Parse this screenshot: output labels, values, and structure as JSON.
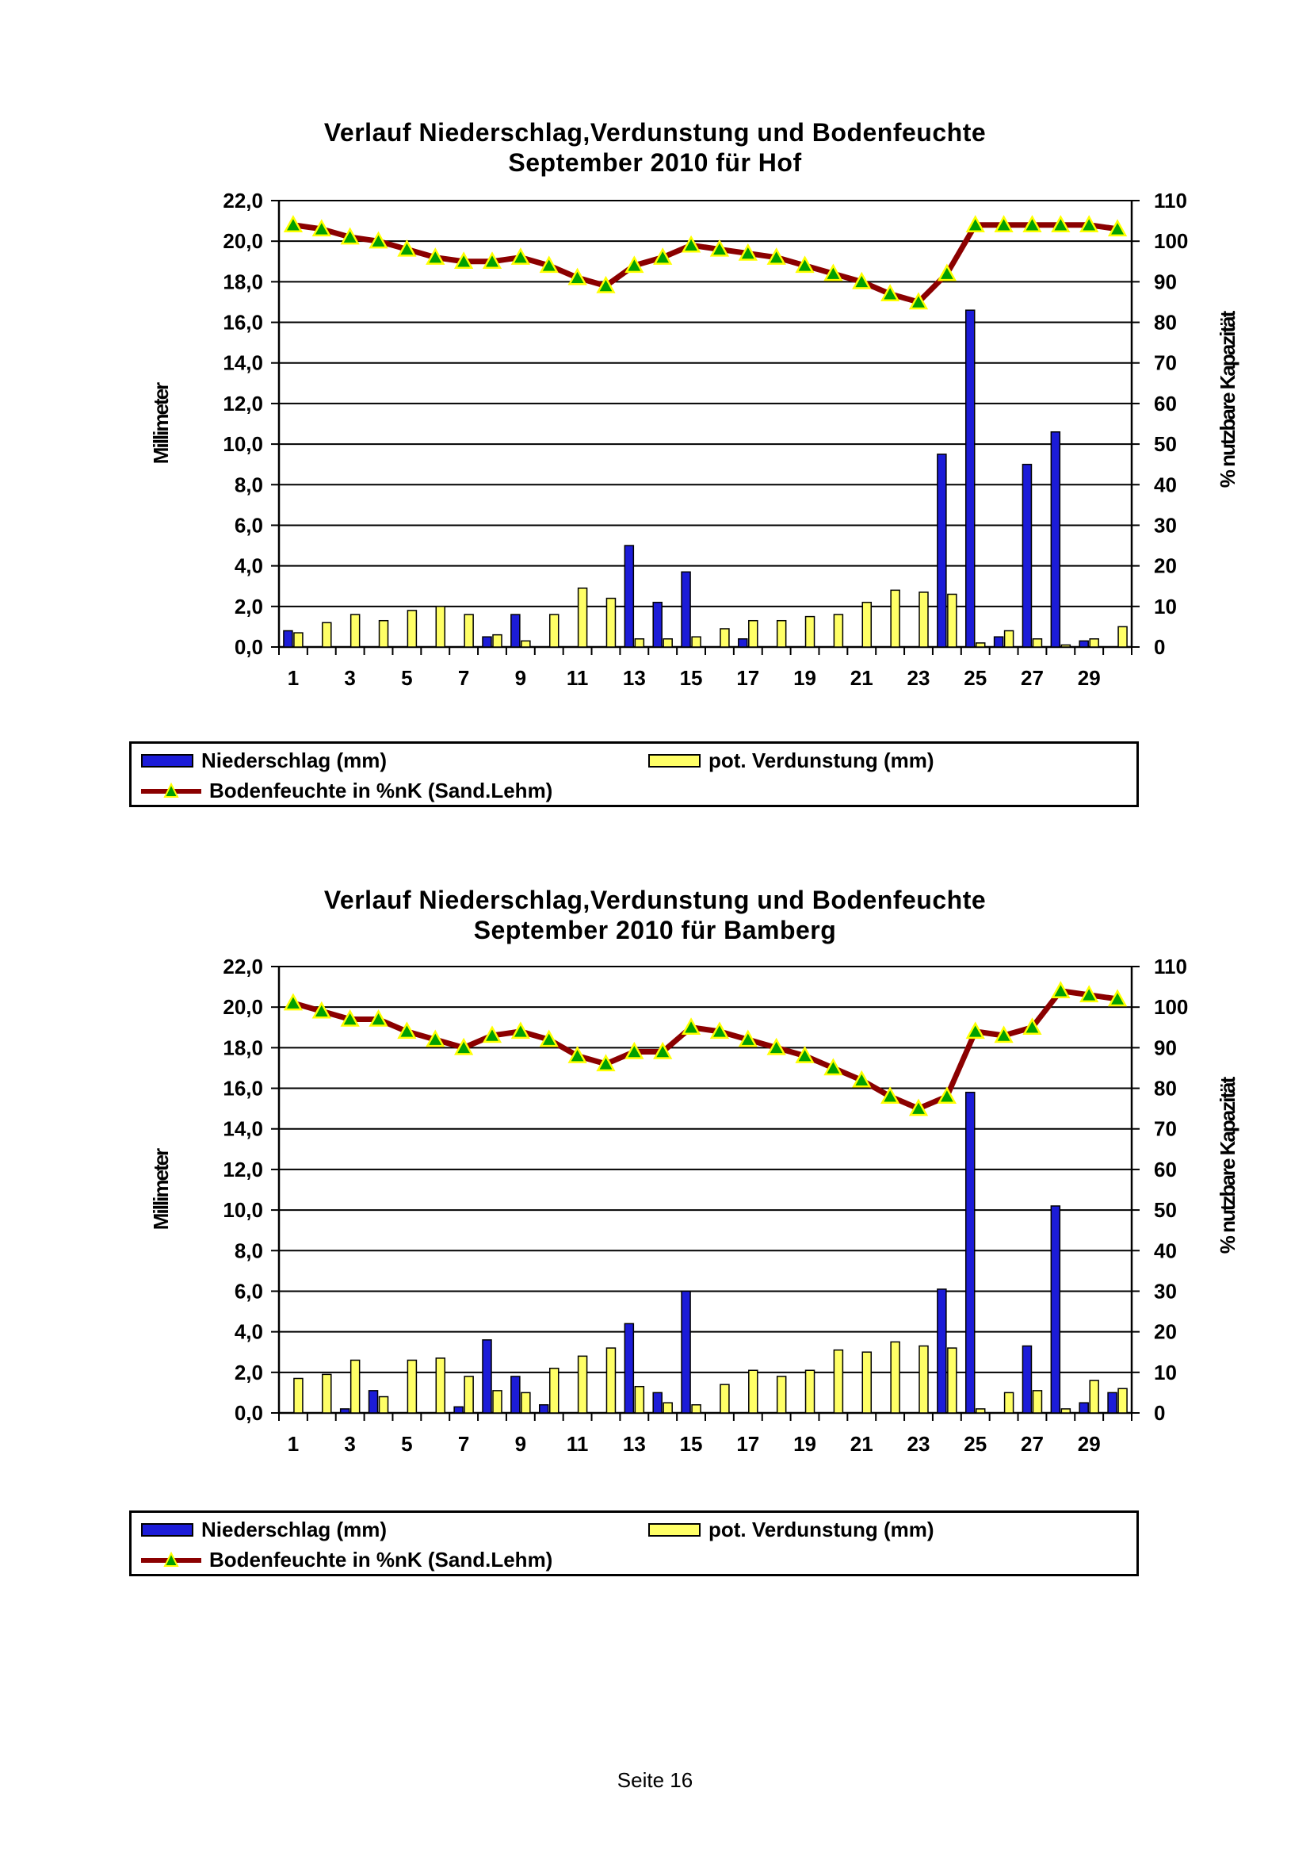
{
  "page": {
    "footer": "Seite 16"
  },
  "chart_data": [
    {
      "type": "bar",
      "title_line1": "Verlauf Niederschlag,Verdunstung und Bodenfeuchte",
      "title_line2": "September 2010 für Hof",
      "ylabel": "Millimeter",
      "y2label": "% nutzbare Kapazität",
      "ylim": [
        0,
        22
      ],
      "y2lim": [
        0,
        110
      ],
      "y_ticks": [
        "0,0",
        "2,0",
        "4,0",
        "6,0",
        "8,0",
        "10,0",
        "12,0",
        "14,0",
        "16,0",
        "18,0",
        "20,0",
        "22,0"
      ],
      "y2_ticks": [
        "0",
        "10",
        "20",
        "30",
        "40",
        "50",
        "60",
        "70",
        "80",
        "90",
        "100",
        "110"
      ],
      "x_tick_labels": [
        "1",
        "3",
        "5",
        "7",
        "9",
        "11",
        "13",
        "15",
        "17",
        "19",
        "21",
        "23",
        "25",
        "27",
        "29"
      ],
      "categories": [
        1,
        2,
        3,
        4,
        5,
        6,
        7,
        8,
        9,
        10,
        11,
        12,
        13,
        14,
        15,
        16,
        17,
        18,
        19,
        20,
        21,
        22,
        23,
        24,
        25,
        26,
        27,
        28,
        29,
        30
      ],
      "grid": "horizontal",
      "legend_position": "bottom",
      "series": [
        {
          "name": "Niederschlag (mm)",
          "kind": "bar",
          "axis": "left",
          "color": "#1c1cd8",
          "values": [
            0.8,
            0,
            0,
            0,
            0,
            0,
            0,
            0.5,
            1.6,
            0,
            0,
            0,
            5.0,
            2.2,
            3.7,
            0,
            0.4,
            0,
            0,
            0,
            0,
            0,
            0,
            9.5,
            16.6,
            0.5,
            9.0,
            10.6,
            0.3,
            0
          ]
        },
        {
          "name": "pot. Verdunstung (mm)",
          "kind": "bar",
          "axis": "left",
          "color": "#ffff66",
          "values": [
            0.7,
            1.2,
            1.6,
            1.3,
            1.8,
            2.0,
            1.6,
            0.6,
            0.3,
            1.6,
            2.9,
            2.4,
            0.4,
            0.4,
            0.5,
            0.9,
            1.3,
            1.3,
            1.5,
            1.6,
            2.2,
            2.8,
            2.7,
            2.6,
            0.2,
            0.8,
            0.4,
            0.1,
            0.4,
            1.0
          ]
        },
        {
          "name": "Bodenfeuchte in %nK (Sand.Lehm)",
          "kind": "line",
          "axis": "right",
          "color": "#8b0000",
          "marker_color": "#00a000",
          "values": [
            104,
            103,
            101,
            100,
            98,
            96,
            95,
            95,
            96,
            94,
            91,
            89,
            94,
            96,
            99,
            98,
            97,
            96,
            94,
            92,
            90,
            87,
            85,
            92,
            104,
            104,
            104,
            104,
            104,
            103
          ]
        }
      ]
    },
    {
      "type": "bar",
      "title_line1": "Verlauf Niederschlag,Verdunstung und Bodenfeuchte",
      "title_line2": "September 2010 für Bamberg",
      "ylabel": "Millimeter",
      "y2label": "% nutzbare Kapazität",
      "ylim": [
        0,
        22
      ],
      "y2lim": [
        0,
        110
      ],
      "y_ticks": [
        "0,0",
        "2,0",
        "4,0",
        "6,0",
        "8,0",
        "10,0",
        "12,0",
        "14,0",
        "16,0",
        "18,0",
        "20,0",
        "22,0"
      ],
      "y2_ticks": [
        "0",
        "10",
        "20",
        "30",
        "40",
        "50",
        "60",
        "70",
        "80",
        "90",
        "100",
        "110"
      ],
      "x_tick_labels": [
        "1",
        "3",
        "5",
        "7",
        "9",
        "11",
        "13",
        "15",
        "17",
        "19",
        "21",
        "23",
        "25",
        "27",
        "29"
      ],
      "categories": [
        1,
        2,
        3,
        4,
        5,
        6,
        7,
        8,
        9,
        10,
        11,
        12,
        13,
        14,
        15,
        16,
        17,
        18,
        19,
        20,
        21,
        22,
        23,
        24,
        25,
        26,
        27,
        28,
        29,
        30
      ],
      "grid": "horizontal",
      "legend_position": "bottom",
      "series": [
        {
          "name": "Niederschlag (mm)",
          "kind": "bar",
          "axis": "left",
          "color": "#1c1cd8",
          "values": [
            0,
            0,
            0.2,
            1.1,
            0,
            0,
            0.3,
            3.6,
            1.8,
            0.4,
            0,
            0,
            4.4,
            1.0,
            6.0,
            0,
            0,
            0,
            0,
            0,
            0,
            0,
            0,
            6.1,
            15.8,
            0,
            3.3,
            10.2,
            0.5,
            1.0
          ]
        },
        {
          "name": "pot. Verdunstung (mm)",
          "kind": "bar",
          "axis": "left",
          "color": "#ffff66",
          "values": [
            1.7,
            1.9,
            2.6,
            0.8,
            2.6,
            2.7,
            1.8,
            1.1,
            1.0,
            2.2,
            2.8,
            3.2,
            1.3,
            0.5,
            0.4,
            1.4,
            2.1,
            1.8,
            2.1,
            3.1,
            3.0,
            3.5,
            3.3,
            3.2,
            0.2,
            1.0,
            1.1,
            0.2,
            1.6,
            1.2
          ]
        },
        {
          "name": "Bodenfeuchte in %nK (Sand.Lehm)",
          "kind": "line",
          "axis": "right",
          "color": "#8b0000",
          "marker_color": "#00a000",
          "values": [
            101,
            99,
            97,
            97,
            94,
            92,
            90,
            93,
            94,
            92,
            88,
            86,
            89,
            89,
            95,
            94,
            92,
            90,
            88,
            85,
            82,
            78,
            75,
            78,
            94,
            93,
            95,
            104,
            103,
            102
          ]
        }
      ]
    }
  ]
}
